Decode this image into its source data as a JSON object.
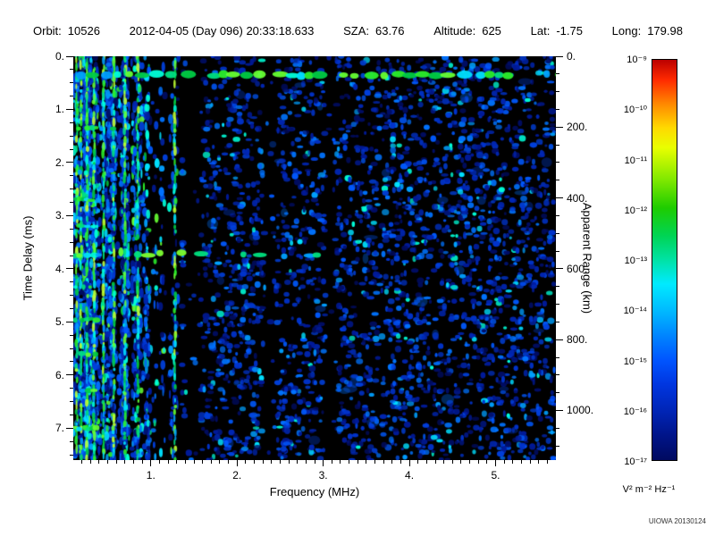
{
  "header": {
    "items": [
      {
        "label": "Orbit:",
        "value": "10526"
      },
      {
        "label": "",
        "value": "2012-04-05 (Day 096) 20:33:18.633"
      },
      {
        "label": "SZA:",
        "value": "63.76"
      },
      {
        "label": "Altitude:",
        "value": "625"
      },
      {
        "label": "Lat:",
        "value": "-1.75"
      },
      {
        "label": "Long:",
        "value": "179.98"
      }
    ]
  },
  "footer": {
    "credit": "UIOWA 20130124"
  },
  "chart_data": {
    "type": "heatmap",
    "description": "Radar sounder ionogram: received spectral density vs frequency and time delay; bright horizontal band near 0.35 ms (transmit pulse), ionospheric echo trace near 3.7 ms from 0.9-3.0 MHz, dense low-frequency interference striping below 1.4 MHz, quiet vertical band near 2.3-2.45 MHz",
    "x": {
      "label": "Frequency (MHz)",
      "range": [
        0.1,
        5.7
      ],
      "major_ticks": [
        1,
        2,
        3,
        4,
        5
      ],
      "tick_labels": [
        "1.",
        "2.",
        "3.",
        "4.",
        "5."
      ],
      "minor_step": 0.1
    },
    "y_left": {
      "label": "Time Delay (ms)",
      "range": [
        0,
        7.6
      ],
      "direction": "down",
      "major_ticks": [
        0,
        1,
        2,
        3,
        4,
        5,
        6,
        7
      ],
      "tick_labels": [
        "0.",
        "1.",
        "2.",
        "3.",
        "4.",
        "5.",
        "6.",
        "7."
      ],
      "minor_step": 0.25
    },
    "y_right": {
      "label": "Apparent Range (km)",
      "range": [
        0,
        1140
      ],
      "km_per_ms": 150,
      "major_ticks": [
        0,
        200,
        400,
        600,
        800,
        1000
      ],
      "tick_labels": [
        "0.",
        "200.",
        "400.",
        "600.",
        "800.",
        "1000."
      ],
      "minor_step": 50
    },
    "colorbar": {
      "unit": "V² m⁻² Hz⁻¹",
      "tick_labels": [
        "10⁻⁹",
        "10⁻¹⁰",
        "10⁻¹¹",
        "10⁻¹²",
        "10⁻¹³",
        "10⁻¹⁴",
        "10⁻¹⁵",
        "10⁻¹⁶",
        "10⁻¹⁷"
      ],
      "gradient": [
        "#bb0000 0%",
        "#ff2a00 5%",
        "#ff8800 11%",
        "#ffd900 17%",
        "#e8ff00 22%",
        "#7fe800 30%",
        "#1ecc00 37%",
        "#00d455 44%",
        "#00e2a5 50%",
        "#00eaff 56%",
        "#00b7ff 63%",
        "#0084ff 69%",
        "#0055ff 75%",
        "#0036e0 81%",
        "#0024b4 88%",
        "#001488 94%",
        "#000a60 100%"
      ]
    },
    "features": {
      "seed": 1337,
      "background": "#000000",
      "dark_palette": [
        "#000d66",
        "#001a99",
        "#0026b3",
        "#0033cc"
      ],
      "mid_palette": [
        "#0040dd",
        "#0059ff",
        "#0073ff"
      ],
      "bright_palette": [
        "#00a0ff",
        "#00e0ff",
        "#00ffd9"
      ],
      "green_palette": [
        "#00cc44",
        "#2bee2b",
        "#66ff33",
        "#00e080"
      ],
      "low_band": {
        "x_range": [
          0.12,
          1.36
        ],
        "speckle_count": 2400,
        "stripe_count": 55,
        "bright_lines": [
          0.14,
          0.19,
          0.26,
          0.34,
          0.45,
          0.57,
          0.7,
          0.85,
          1.28
        ],
        "quiet_bands": [
          [
            0.98,
            1.12
          ]
        ]
      },
      "speckle": {
        "x_range": [
          1.36,
          5.68
        ],
        "count": 3000,
        "quiet_bands": [
          [
            1.38,
            1.58
          ],
          [
            2.3,
            2.46
          ],
          [
            3.02,
            3.14
          ]
        ]
      },
      "tx_band": {
        "t": 0.35
      },
      "echo_trace": {
        "t": 3.72,
        "x_range": [
          0.85,
          3.0
        ]
      },
      "harmonics": [
        [
          1.35,
          0.66
        ],
        [
          2.2,
          0.4
        ],
        [
          2.7,
          0.42
        ],
        [
          3.2,
          0.36
        ],
        [
          3.75,
          0.4
        ],
        [
          4.35,
          0.36
        ],
        [
          4.95,
          0.4
        ],
        [
          5.6,
          0.36
        ],
        [
          6.3,
          0.36
        ],
        [
          7.0,
          0.4
        ]
      ]
    }
  }
}
